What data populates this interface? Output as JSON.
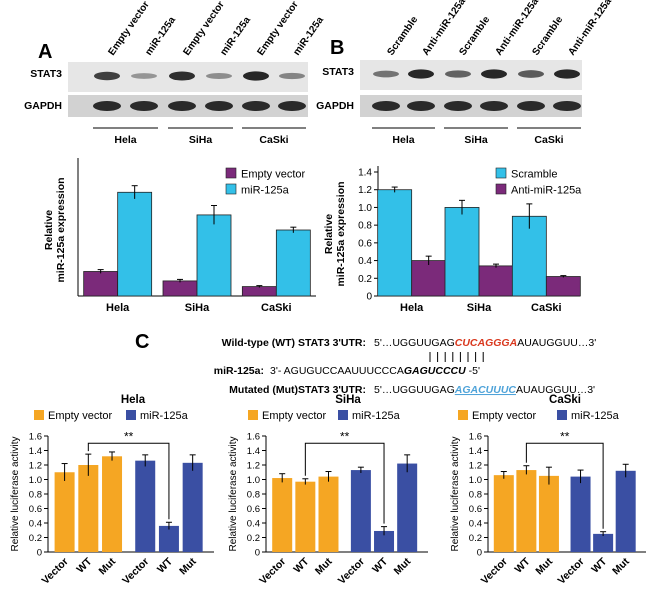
{
  "panel_letters": {
    "a": "A",
    "b": "B",
    "c": "C"
  },
  "blot_a": {
    "lanes": [
      "Empty vector",
      "miR-125a",
      "Empty vector",
      "miR-125a",
      "Empty vector",
      "miR-125a"
    ],
    "rows": [
      "STAT3",
      "GAPDH"
    ],
    "groups": [
      "Hela",
      "SiHa",
      "CaSki"
    ],
    "stat3_intensity": [
      0.8,
      0.3,
      0.9,
      0.35,
      0.95,
      0.4
    ]
  },
  "blot_b": {
    "lanes": [
      "Scramble",
      "Anti-miR-125a",
      "Scramble",
      "Anti-miR-125a",
      "Scramble",
      "Anti-miR-125a"
    ],
    "rows": [
      "STAT3",
      "GAPDH"
    ],
    "groups": [
      "Hela",
      "SiHa",
      "CaSki"
    ],
    "stat3_intensity": [
      0.5,
      0.95,
      0.6,
      0.95,
      0.65,
      0.95
    ]
  },
  "sequence": {
    "wt": {
      "label": "Wild-type (WT) STAT3  3'UTR:",
      "prefix": "5'…UGGUUGAG",
      "seed": "CUCAGGGA",
      "suffix": "AUAUGGUU…3'",
      "seed_color": "#d9381e"
    },
    "mir": {
      "label": "miR-125a:",
      "prefix": "3'- AGUGUCCAAUUUCCCA",
      "seed": "GAGUCCCU",
      "suffix": " -5'"
    },
    "mut": {
      "label": "Mutated (Mut)STAT3 3'UTR:",
      "prefix": "5'…UGGUUGAG",
      "seed": "AGACUUUC",
      "suffix": "AUAUGGUU…3'",
      "seed_color": "#4fa3d9"
    }
  },
  "chart_data": [
    {
      "id": "A-bar",
      "type": "bar",
      "title": "",
      "ylabel": "Relative miR-125a expression",
      "ylim": [
        0,
        7
      ],
      "yticks": [],
      "categories": [
        "Hela",
        "SiHa",
        "CaSki"
      ],
      "series": [
        {
          "name": "Empty vector",
          "color": "#7b2a7a",
          "values": [
            1.3,
            0.8,
            0.5
          ],
          "errors": [
            0.1,
            0.08,
            0.05
          ]
        },
        {
          "name": "miR-125a",
          "color": "#33c0e8",
          "values": [
            5.5,
            4.3,
            3.5
          ],
          "errors": [
            0.35,
            0.5,
            0.15
          ]
        }
      ],
      "legend_position": "top-right",
      "annotations": []
    },
    {
      "id": "B-bar",
      "type": "bar",
      "title": "",
      "ylabel": "Relative miR-125a expression",
      "ylim": [
        0,
        1.4
      ],
      "yticks": [
        "0",
        "0.2",
        "0.4",
        "0.6",
        "0.8",
        "1.0",
        "1.2",
        "1.4"
      ],
      "categories": [
        "Hela",
        "SiHa",
        "CaSki"
      ],
      "series": [
        {
          "name": "Scramble",
          "color": "#33c0e8",
          "values": [
            1.2,
            1.0,
            0.9
          ],
          "errors": [
            0.03,
            0.08,
            0.14
          ]
        },
        {
          "name": "Anti-miR-125a",
          "color": "#7b2a7a",
          "values": [
            0.4,
            0.34,
            0.22
          ],
          "errors": [
            0.05,
            0.02,
            0.01
          ]
        }
      ],
      "legend_position": "top-right",
      "annotations": []
    },
    {
      "id": "C-hela",
      "type": "bar",
      "title": "Hela",
      "ylabel": "Relative luciferase activity",
      "ylim": [
        0,
        1.6
      ],
      "yticks": [
        "0",
        "0.2",
        "0.4",
        "0.6",
        "0.8",
        "1.0",
        "1.2",
        "1.4",
        "1.6"
      ],
      "categories": [
        "Vector",
        "WT",
        "Mut",
        "Vector",
        "WT",
        "Mut"
      ],
      "series": [
        {
          "name": "Empty vector",
          "color": "#f5a623"
        },
        {
          "name": "miR-125a",
          "color": "#3a4fa3"
        }
      ],
      "bars": [
        {
          "value": 1.1,
          "error": 0.12,
          "series": 0
        },
        {
          "value": 1.2,
          "error": 0.15,
          "series": 0
        },
        {
          "value": 1.32,
          "error": 0.06,
          "series": 0
        },
        {
          "value": 1.26,
          "error": 0.08,
          "series": 1
        },
        {
          "value": 0.36,
          "error": 0.05,
          "series": 1
        },
        {
          "value": 1.23,
          "error": 0.11,
          "series": 1
        }
      ],
      "significance": {
        "from": 1,
        "to": 4,
        "label": "**"
      }
    },
    {
      "id": "C-siha",
      "type": "bar",
      "title": "SiHa",
      "ylabel": "Relative luciferase activity",
      "ylim": [
        0,
        1.6
      ],
      "yticks": [
        "0",
        "0.2",
        "0.4",
        "0.6",
        "0.8",
        "1.0",
        "1.2",
        "1.4",
        "1.6"
      ],
      "categories": [
        "Vector",
        "WT",
        "Mut",
        "Vector",
        "WT",
        "Mut"
      ],
      "series": [
        {
          "name": "Empty vector",
          "color": "#f5a623"
        },
        {
          "name": "miR-125a",
          "color": "#3a4fa3"
        }
      ],
      "bars": [
        {
          "value": 1.02,
          "error": 0.06,
          "series": 0
        },
        {
          "value": 0.97,
          "error": 0.04,
          "series": 0
        },
        {
          "value": 1.04,
          "error": 0.07,
          "series": 0
        },
        {
          "value": 1.13,
          "error": 0.04,
          "series": 1
        },
        {
          "value": 0.29,
          "error": 0.06,
          "series": 1
        },
        {
          "value": 1.22,
          "error": 0.12,
          "series": 1
        }
      ],
      "significance": {
        "from": 1,
        "to": 4,
        "label": "**"
      }
    },
    {
      "id": "C-caski",
      "type": "bar",
      "title": "CaSki",
      "ylabel": "Relative luciferase activity",
      "ylim": [
        0,
        1.6
      ],
      "yticks": [
        "0",
        "0.2",
        "0.4",
        "0.6",
        "0.8",
        "1.0",
        "1.2",
        "1.4",
        "1.6"
      ],
      "categories": [
        "Vector",
        "WT",
        "Mut",
        "Vector",
        "WT",
        "Mut"
      ],
      "series": [
        {
          "name": "Empty vector",
          "color": "#f5a623"
        },
        {
          "name": "miR-125a",
          "color": "#3a4fa3"
        }
      ],
      "bars": [
        {
          "value": 1.06,
          "error": 0.05,
          "series": 0
        },
        {
          "value": 1.13,
          "error": 0.06,
          "series": 0
        },
        {
          "value": 1.05,
          "error": 0.12,
          "series": 0
        },
        {
          "value": 1.04,
          "error": 0.09,
          "series": 1
        },
        {
          "value": 0.25,
          "error": 0.03,
          "series": 1
        },
        {
          "value": 1.12,
          "error": 0.09,
          "series": 1
        }
      ],
      "significance": {
        "from": 1,
        "to": 4,
        "label": "**"
      }
    }
  ]
}
